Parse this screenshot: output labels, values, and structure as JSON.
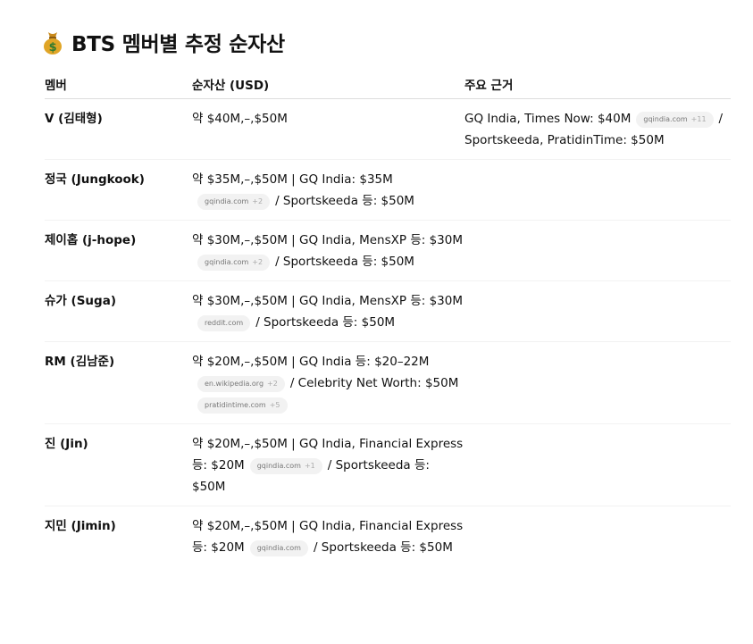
{
  "title": "BTS 멤버별 추정 순자산",
  "title_icon": "money-bag-icon",
  "headers": [
    "멤버",
    "순자산 (USD)",
    "주요 근거"
  ],
  "rows": [
    {
      "member": "V (김태형)",
      "net": [
        {
          "t": "약 $40M,–,$50M"
        }
      ],
      "basis": [
        {
          "t": "GQ India, Times Now: $40M"
        },
        {
          "chip": "gqindia.com",
          "more": "+11"
        },
        {
          "t": "/ Sportskeeda, PratidinTime: $50M"
        }
      ]
    },
    {
      "member": "정국 (Jungkook)",
      "net": [
        {
          "t": "약 $35M,–,$50M | GQ India: $35M"
        },
        {
          "chip": "gqindia.com",
          "more": "+2"
        },
        {
          "t": "/ Sportskeeda 등: $50M"
        }
      ],
      "basis": []
    },
    {
      "member": "제이홉 (j-hope)",
      "net": [
        {
          "t": "약 $30M,–,$50M | GQ India, MensXP 등: $30M"
        },
        {
          "chip": "gqindia.com",
          "more": "+2"
        },
        {
          "t": "/ Sportskeeda 등: $50M"
        }
      ],
      "basis": []
    },
    {
      "member": "슈가 (Suga)",
      "net": [
        {
          "t": "약 $30M,–,$50M | GQ India, MensXP 등: $30M"
        },
        {
          "chip": "reddit.com"
        },
        {
          "t": "/ Sportskeeda 등: $50M"
        }
      ],
      "basis": []
    },
    {
      "member": "RM (김남준)",
      "net": [
        {
          "t": "약 $20M,–,$50M | GQ India 등: $20–22M"
        },
        {
          "chip": "en.wikipedia.org",
          "more": "+2"
        },
        {
          "t": "/ Celebrity Net Worth: $50M"
        },
        {
          "chip": "pratidintime.com",
          "more": "+5"
        }
      ],
      "basis": []
    },
    {
      "member": "진 (Jin)",
      "net": [
        {
          "t": "약 $20M,–,$50M | GQ India, Financial Express 등: $20M"
        },
        {
          "chip": "gqindia.com",
          "more": "+1"
        },
        {
          "t": "/ Sportskeeda 등: $50M"
        }
      ],
      "basis": []
    },
    {
      "member": "지민 (Jimin)",
      "net": [
        {
          "t": "약 $20M,–,$50M | GQ India, Financial Express 등: $20M"
        },
        {
          "chip": "gqindia.com"
        },
        {
          "t": "/ Sportskeeda 등: $50M"
        }
      ],
      "basis": []
    }
  ]
}
